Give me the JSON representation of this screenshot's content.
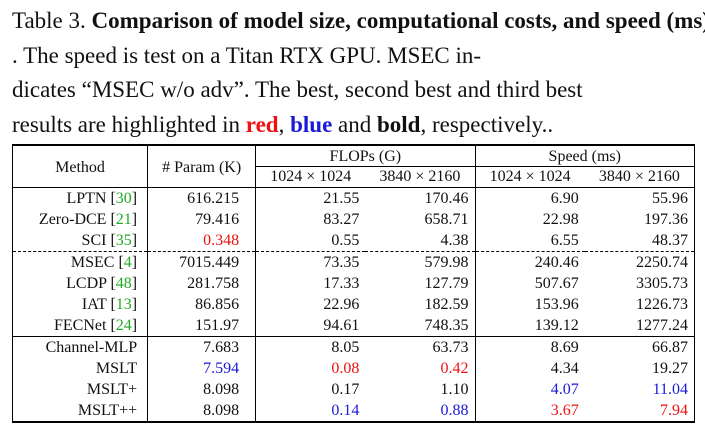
{
  "caption": {
    "label": "Table 3.",
    "title": "Comparison of model size, computational costs, and speed (ms)",
    "text_1": ". The speed is test on a Titan RTX GPU. MSEC in-",
    "text_2": "dicates “MSEC w/o adv”. The best, second best and third best",
    "text_3": "results are highlighted in ",
    "red_word": "red",
    "comma": ", ",
    "blue_word": "blue",
    "and_text": " and ",
    "bold_word": "bold",
    "tail": ", respectively.."
  },
  "table": {
    "header": {
      "method": "Method",
      "param": "# Param (K)",
      "flops": "FLOPs (G)",
      "speed": "Speed (ms)",
      "res_a": "1024 × 1024",
      "res_b": "3840 × 2160"
    },
    "colors": {
      "first": "#ee1111",
      "second": "#1a1ad8",
      "third": "bold-black",
      "ref": "#22aa22"
    },
    "rows": [
      {
        "method": "LPTN",
        "ref": "30",
        "param": "616.215",
        "f1": "21.55",
        "f2": "170.46",
        "s1": "6.90",
        "s2": "55.96"
      },
      {
        "method": "Zero-DCE",
        "ref": "21",
        "param": "79.416",
        "f1": "83.27",
        "f2": "658.71",
        "s1": "22.98",
        "s2": "197.36"
      },
      {
        "method": "SCI",
        "ref": "35",
        "param": "0.348",
        "f1": "0.55",
        "f2": "4.38",
        "s1": "6.55",
        "s2": "48.37"
      },
      {
        "method": "MSEC",
        "ref": "4",
        "param": "7015.449",
        "f1": "73.35",
        "f2": "579.98",
        "s1": "240.46",
        "s2": "2250.74"
      },
      {
        "method": "LCDP",
        "ref": "48",
        "param": "281.758",
        "f1": "17.33",
        "f2": "127.79",
        "s1": "507.67",
        "s2": "3305.73"
      },
      {
        "method": "IAT",
        "ref": "13",
        "param": "86.856",
        "f1": "22.96",
        "f2": "182.59",
        "s1": "153.96",
        "s2": "1226.73"
      },
      {
        "method": "FECNet",
        "ref": "24",
        "param": "151.97",
        "f1": "94.61",
        "f2": "748.35",
        "s1": "139.12",
        "s2": "1277.24"
      },
      {
        "method": "Channel-MLP",
        "param": "7.683",
        "f1": "8.05",
        "f2": "63.73",
        "s1": "8.69",
        "s2": "66.87"
      },
      {
        "method": "MSLT",
        "param": "7.594",
        "f1": "0.08",
        "f2": "0.42",
        "s1": "4.34",
        "s2": "19.27"
      },
      {
        "method": "MSLT+",
        "param": "8.098",
        "f1": "0.17",
        "f2": "1.10",
        "s1": "4.07",
        "s2": "11.04"
      },
      {
        "method": "MSLT++",
        "param": "8.098",
        "f1": "0.14",
        "f2": "0.88",
        "s1": "3.67",
        "s2": "7.94"
      }
    ]
  }
}
